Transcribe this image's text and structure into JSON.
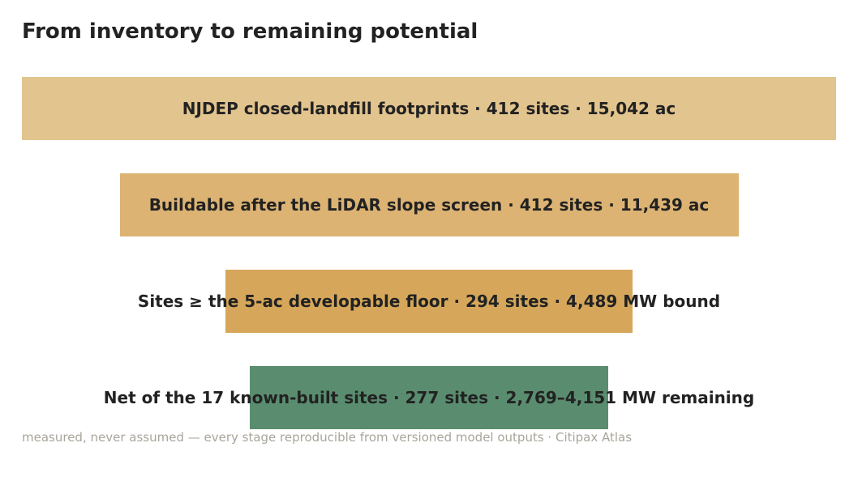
{
  "title": "From inventory to remaining potential",
  "footnote": "measured, never assumed — every stage reproducible from versioned model outputs · Citipax Atlas",
  "chart_data": {
    "type": "bar",
    "orientation": "funnel",
    "value_basis": "acres where printed; MW bound otherwise",
    "stages": [
      {
        "label": "NJDEP closed-landfill footprints  ·  412 sites  ·  15,042 ac",
        "sites": 412,
        "acres": 15042,
        "color": "#e2c48e"
      },
      {
        "label": "Buildable after the LiDAR slope screen  ·  412 sites  ·  11,439 ac",
        "sites": 412,
        "acres": 11439,
        "color": "#dcb373"
      },
      {
        "label": "Sites ≥ the 5-ac developable floor  ·  294 sites  ·  4,489 MW bound",
        "sites": 294,
        "mw": 4489,
        "color": "#d6a75a"
      },
      {
        "label": "Net of the 17 known-built sites  ·  277 sites  ·  2,769–4,151 MW remaining",
        "sites": 277,
        "mw_low": 2769,
        "mw_high": 4151,
        "color": "#5a8d6f"
      }
    ],
    "relative_widths": [
      1.0,
      0.76,
      0.5,
      0.44
    ]
  }
}
